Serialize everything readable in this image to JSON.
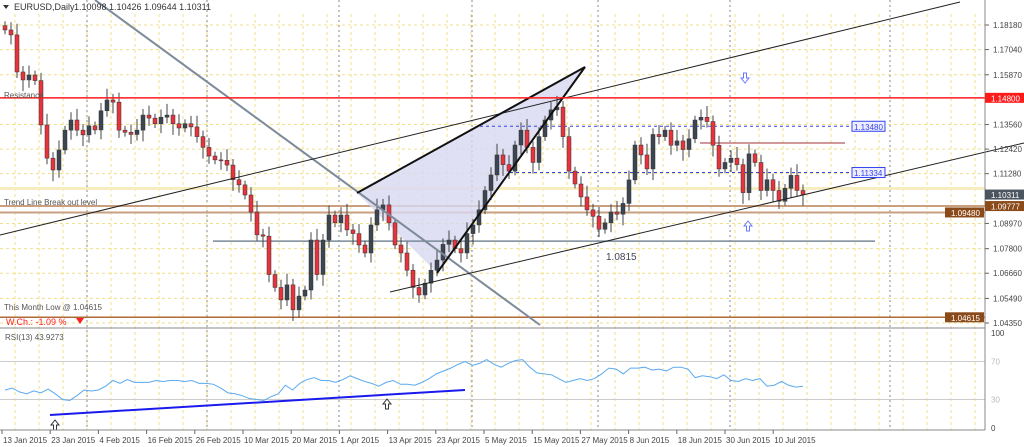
{
  "header": {
    "symbol": "EURUSD,Daily",
    "ohlc": "1.10098 1.10426 1.09644 1.10311"
  },
  "rsi_label": "RSI(13) 43.9273",
  "labels": {
    "resistance": "Resistance",
    "trend_break": "Trend Line Break out level",
    "month_low": "This Month Low @ 1.04615",
    "weekly_change": "W.Ch.: -1.09 %",
    "support_level": "1.0815"
  },
  "colors": {
    "bull": "#3b4652",
    "bear": "#e8323c",
    "resistance": "#ff1a1a",
    "grid": "#f0e08a",
    "rsi": "#5aaaf0",
    "rsi_trend": "#1a1aee",
    "wedge_fill": "#d8d8f2"
  },
  "chart_data": [
    {
      "type": "candlestick",
      "title": "EURUSD,Daily",
      "y_ticks": [
        "1.18180",
        "1.17040",
        "1.15870",
        "1.13560",
        "1.12420",
        "1.11280",
        "1.08970",
        "1.07800",
        "1.06660",
        "1.05490",
        "1.04350"
      ],
      "ylim": [
        1.0435,
        1.1818
      ],
      "price_tags": [
        {
          "value": "1.14800",
          "color": "#ff1a1a"
        },
        {
          "value": "1.10311",
          "color": "#4a5560"
        },
        {
          "value": "1.09777",
          "color": "#8b4a1a"
        },
        {
          "value": "1.09480",
          "color": "#8b4a1a"
        },
        {
          "value": "1.04615",
          "color": "#8b4a1a"
        }
      ],
      "level_tags": [
        "1.13480",
        "1.11334"
      ],
      "x_ticks": [
        "13 Jan 2015",
        "23 Jan 2015",
        "4 Feb 2015",
        "16 Feb 2015",
        "26 Feb 2015",
        "10 Mar 2015",
        "20 Mar 2015",
        "1 Apr 2015",
        "13 Apr 2015",
        "23 Apr 2015",
        "5 May 2015",
        "15 May 2015",
        "27 May 2015",
        "8 Jun 2015",
        "18 Jun 2015",
        "30 Jun 2015",
        "10 Jul 2015"
      ],
      "closes": [
        1.1795,
        1.1772,
        1.16,
        1.1563,
        1.1586,
        1.156,
        1.1354,
        1.12,
        1.1145,
        1.1238,
        1.133,
        1.1377,
        1.133,
        1.1308,
        1.135,
        1.1331,
        1.142,
        1.147,
        1.146,
        1.133,
        1.132,
        1.131,
        1.133,
        1.14,
        1.1386,
        1.136,
        1.139,
        1.14,
        1.136,
        1.134,
        1.136,
        1.1345,
        1.13,
        1.125,
        1.121,
        1.1192,
        1.119,
        1.1168,
        1.11,
        1.1076,
        1.1029,
        1.095,
        1.0844,
        1.0838,
        1.066,
        1.06,
        1.0542,
        1.0612,
        1.0496,
        1.056,
        1.0588,
        1.082,
        1.066,
        1.082,
        1.0936,
        1.09,
        1.0936,
        1.0867,
        1.085,
        1.0797,
        1.076,
        1.089,
        1.096,
        1.0983,
        1.09,
        1.0797,
        1.076,
        1.068,
        1.06,
        1.0565,
        1.062,
        1.068,
        1.0727,
        1.08,
        1.082,
        1.078,
        1.076,
        1.085,
        1.089,
        1.096,
        1.105,
        1.1122,
        1.1215,
        1.117,
        1.114,
        1.1261,
        1.133,
        1.125,
        1.118,
        1.13,
        1.1377,
        1.1424,
        1.1437,
        1.13,
        1.114,
        1.108,
        1.102,
        1.096,
        1.093,
        1.087,
        1.09,
        1.095,
        1.094,
        1.099,
        1.1099,
        1.1261,
        1.1215,
        1.115,
        1.131,
        1.13,
        1.133,
        1.126,
        1.128,
        1.124,
        1.129,
        1.1377,
        1.139,
        1.137,
        1.126,
        1.115,
        1.118,
        1.12,
        1.117,
        1.104,
        1.122,
        1.118,
        1.105,
        1.11,
        1.105,
        1.1,
        1.106,
        1.112,
        1.105,
        1.1031
      ],
      "levels": {
        "resistance": 1.148,
        "blue_upper": 1.1348,
        "blue_lower": 1.11334,
        "support": 1.0815,
        "trend_break": 1.09777,
        "trend_break_2": 1.0948,
        "month_low": 1.04615,
        "current": 1.10311
      }
    },
    {
      "type": "line",
      "title": "RSI(13) 43.9273",
      "y_ticks": [
        "100",
        "70",
        "30",
        "0"
      ],
      "ylim": [
        0,
        100
      ],
      "values": [
        40,
        42,
        38,
        36,
        39,
        37,
        41,
        36,
        30,
        29,
        34,
        40,
        39,
        40,
        44,
        50,
        47,
        51,
        48,
        48,
        48,
        50,
        49,
        50,
        50,
        49,
        50,
        47,
        47,
        46,
        42,
        37,
        36,
        34,
        31,
        30,
        29,
        33,
        36,
        45,
        40,
        47,
        51,
        53,
        50,
        50,
        48,
        51,
        55,
        52,
        49,
        47,
        44,
        48,
        50,
        46,
        46,
        45,
        48,
        52,
        57,
        60,
        63,
        67,
        70,
        66,
        68,
        72,
        67,
        64,
        68,
        71,
        72,
        64,
        58,
        57,
        56,
        52,
        48,
        50,
        52,
        50,
        52,
        57,
        63,
        62,
        57,
        63,
        63,
        64,
        61,
        62,
        60,
        64,
        64,
        62,
        53,
        55,
        54,
        52,
        56,
        50,
        49,
        52,
        50,
        52,
        44,
        45,
        49,
        45,
        43,
        44
      ]
    }
  ]
}
